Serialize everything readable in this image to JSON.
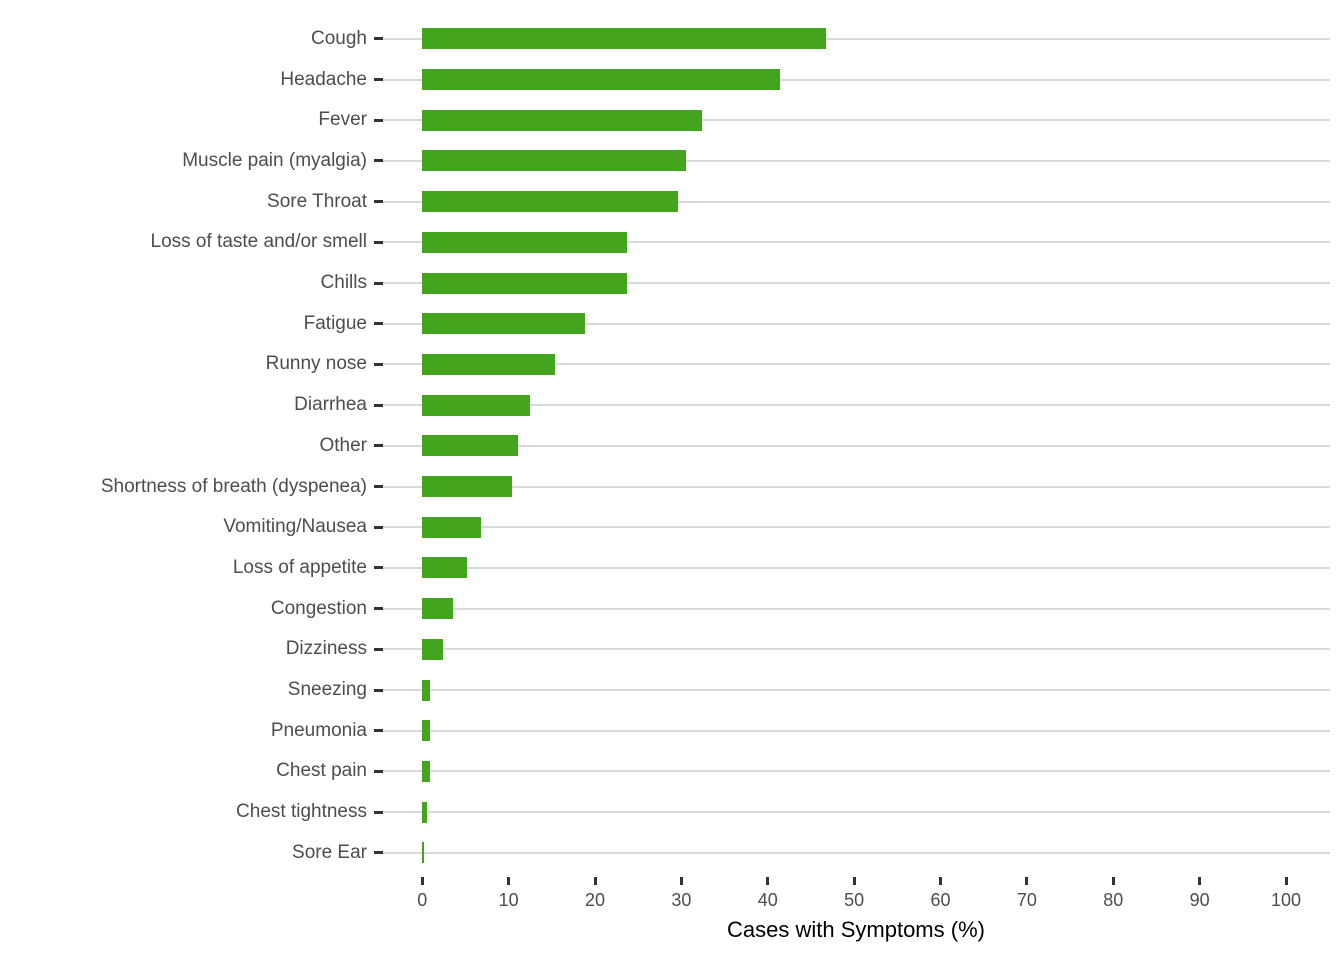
{
  "chart_data": {
    "type": "bar",
    "orientation": "horizontal",
    "title": "",
    "xlabel": "Cases with Symptoms (%)",
    "ylabel": "",
    "xlim": [
      0,
      100
    ],
    "x_ticks": [
      0,
      10,
      20,
      30,
      40,
      50,
      60,
      70,
      80,
      90,
      100
    ],
    "grid": "horizontal-row-lines-only",
    "legend": "none",
    "categories": [
      "Cough",
      "Headache",
      "Fever",
      "Muscle pain (myalgia)",
      "Sore Throat",
      "Loss of taste and/or smell",
      "Chills",
      "Fatigue",
      "Runny nose",
      "Diarrhea",
      "Other",
      "Shortness of breath (dyspenea)",
      "Vomiting/Nausea",
      "Loss of appetite",
      "Congestion",
      "Dizziness",
      "Sneezing",
      "Pneumonia",
      "Chest pain",
      "Chest tightness",
      "Sore Ear"
    ],
    "values": [
      46.7,
      41.4,
      32.4,
      30.5,
      29.6,
      23.7,
      23.7,
      18.8,
      15.4,
      12.5,
      11.1,
      10.4,
      6.8,
      5.2,
      3.6,
      2.4,
      0.9,
      0.9,
      0.9,
      0.5,
      0.2
    ],
    "colors": {
      "bar": "#45a41e",
      "gridline": "#d9d9d9",
      "axis_tick": "#333333",
      "tick_label_text": "#4d4d4d",
      "axis_title_text": "#000000",
      "background": "#ffffff"
    }
  }
}
